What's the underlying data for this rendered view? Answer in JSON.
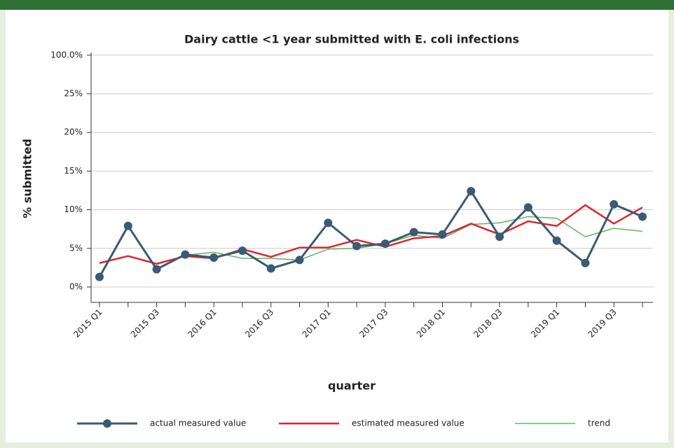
{
  "chart_data": {
    "type": "line",
    "title": "Dairy cattle <1 year submitted with E. coli infections",
    "x_label": "quarter",
    "y_label": "% submitted",
    "categories": [
      "2015 Q1",
      null,
      "2015 Q3",
      null,
      "2016 Q1",
      null,
      "2016 Q3",
      null,
      "2017 Q1",
      null,
      "2017 Q3",
      null,
      "2018 Q1",
      null,
      "2018 Q3",
      null,
      "2019 Q1",
      null,
      "2019 Q3",
      null
    ],
    "series": [
      {
        "name": "actual measured value",
        "color": "#3b5a74",
        "markers": true,
        "values": [
          1.3,
          7.9,
          2.3,
          4.2,
          3.8,
          4.7,
          2.4,
          3.5,
          8.3,
          5.3,
          5.6,
          7.1,
          6.8,
          12.4,
          6.5,
          10.3,
          6.0,
          3.1,
          10.7,
          9.1
        ]
      },
      {
        "name": "estimated measured value",
        "color": "#e0262b",
        "markers": false,
        "values": [
          3.1,
          4.0,
          3.0,
          4.0,
          3.7,
          4.9,
          3.9,
          5.1,
          5.1,
          6.1,
          5.2,
          6.3,
          6.6,
          8.2,
          6.8,
          8.5,
          7.9,
          10.6,
          8.2,
          10.3
        ]
      },
      {
        "name": "trend",
        "color": "#5cb85c",
        "markers": false,
        "values": [
          null,
          null,
          null,
          4.1,
          4.5,
          3.7,
          3.7,
          3.5,
          4.9,
          5.0,
          5.6,
          6.7,
          6.3,
          8.1,
          8.3,
          9.1,
          8.9,
          6.5,
          7.6,
          7.2
        ]
      }
    ],
    "ylim": [
      -2,
      100
    ],
    "y_break": [
      25,
      100
    ],
    "yticks": [
      {
        "value": 0,
        "label": "0%"
      },
      {
        "value": 5,
        "label": "5%"
      },
      {
        "value": 10,
        "label": "10%"
      },
      {
        "value": 15,
        "label": "15%"
      },
      {
        "value": 20,
        "label": "20%"
      },
      {
        "value": 25,
        "label": "25%"
      },
      {
        "value": 100,
        "label": "100.0%"
      }
    ],
    "grid": true
  }
}
